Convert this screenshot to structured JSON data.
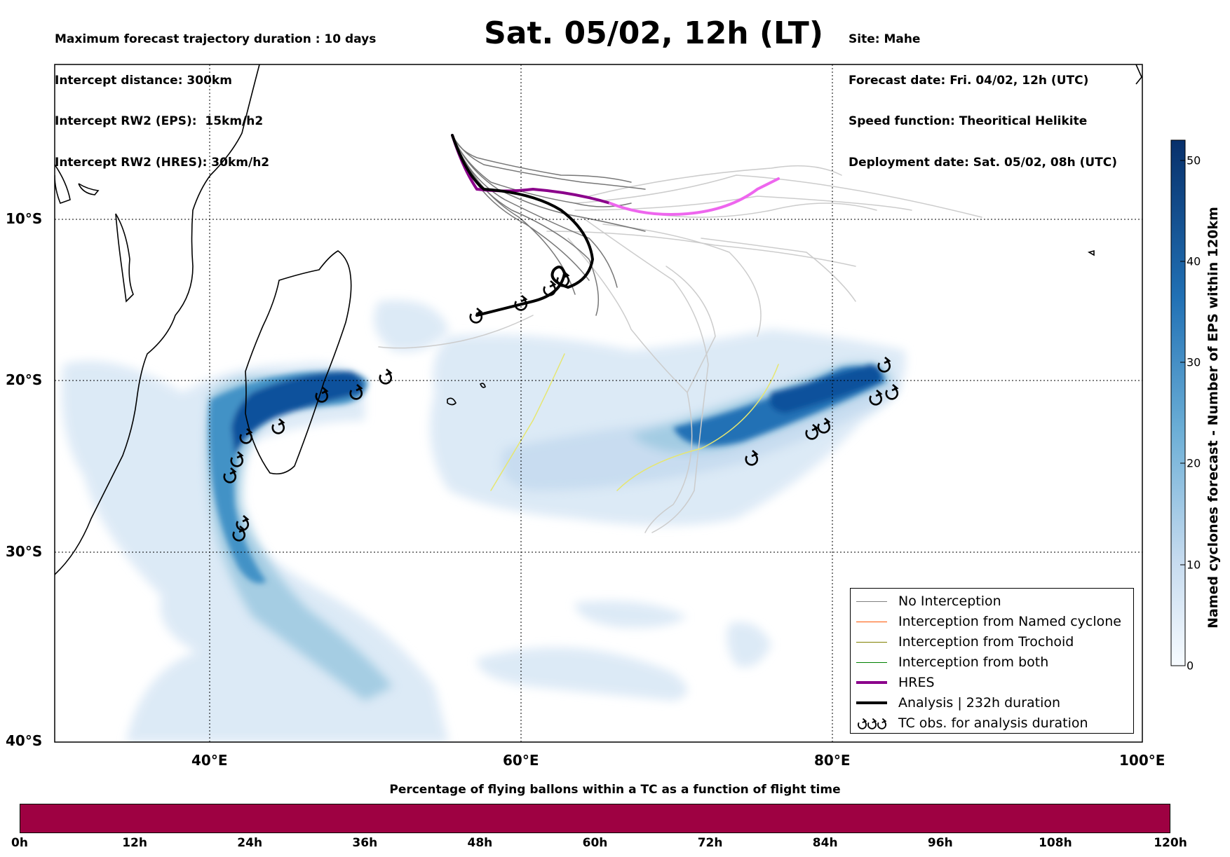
{
  "header_left": [
    "Maximum forecast trajectory duration : 10 days",
    "Intercept distance: 300km",
    "Intercept RW2 (EPS):  15km/h2",
    "Intercept RW2 (HRES): 30km/h2"
  ],
  "header_right": [
    "Site: Mahe",
    "Forecast date: Fri. 04/02, 12h (UTC)",
    "Speed function: Theoritical Helikite",
    "Deployment date: Sat. 05/02, 08h (UTC)"
  ],
  "title": "Sat. 05/02, 12h (LT)",
  "map": {
    "lon_range": [
      30,
      100
    ],
    "lat_range": [
      -40,
      0
    ],
    "lon_ticks": [
      "40°E",
      "60°E",
      "80°E",
      "100°E"
    ],
    "lat_ticks": [
      "10°S",
      "20°S",
      "30°S",
      "40°S"
    ]
  },
  "legend": [
    {
      "label": "No Interception",
      "color": "#808080"
    },
    {
      "label": "Interception from Named cyclone",
      "color": "#ff5500"
    },
    {
      "label": "Interception from Trochoid",
      "color": "#808000"
    },
    {
      "label": "Interception from both",
      "color": "#008000"
    },
    {
      "label": "HRES",
      "color": "#8b008b"
    },
    {
      "label": "Analysis | 232h duration",
      "color": "#000000"
    },
    {
      "label": "TC obs. for analysis duration",
      "icon": "cyclone-symbols"
    }
  ],
  "colorbar": {
    "title": "Named cyclones forecast - Number of EPS within 120km",
    "ticks": [
      "0",
      "10",
      "20",
      "30",
      "40",
      "50"
    ],
    "range": [
      0,
      52
    ],
    "colors": [
      "#f7fbff",
      "#08306b"
    ]
  },
  "time_bar": {
    "title": "Percentage of flying ballons within a TC as a function of flight time",
    "ticks": [
      "0h",
      "12h",
      "24h",
      "36h",
      "48h",
      "60h",
      "72h",
      "84h",
      "96h",
      "108h",
      "120h"
    ],
    "fill_color": "#9e0142"
  }
}
